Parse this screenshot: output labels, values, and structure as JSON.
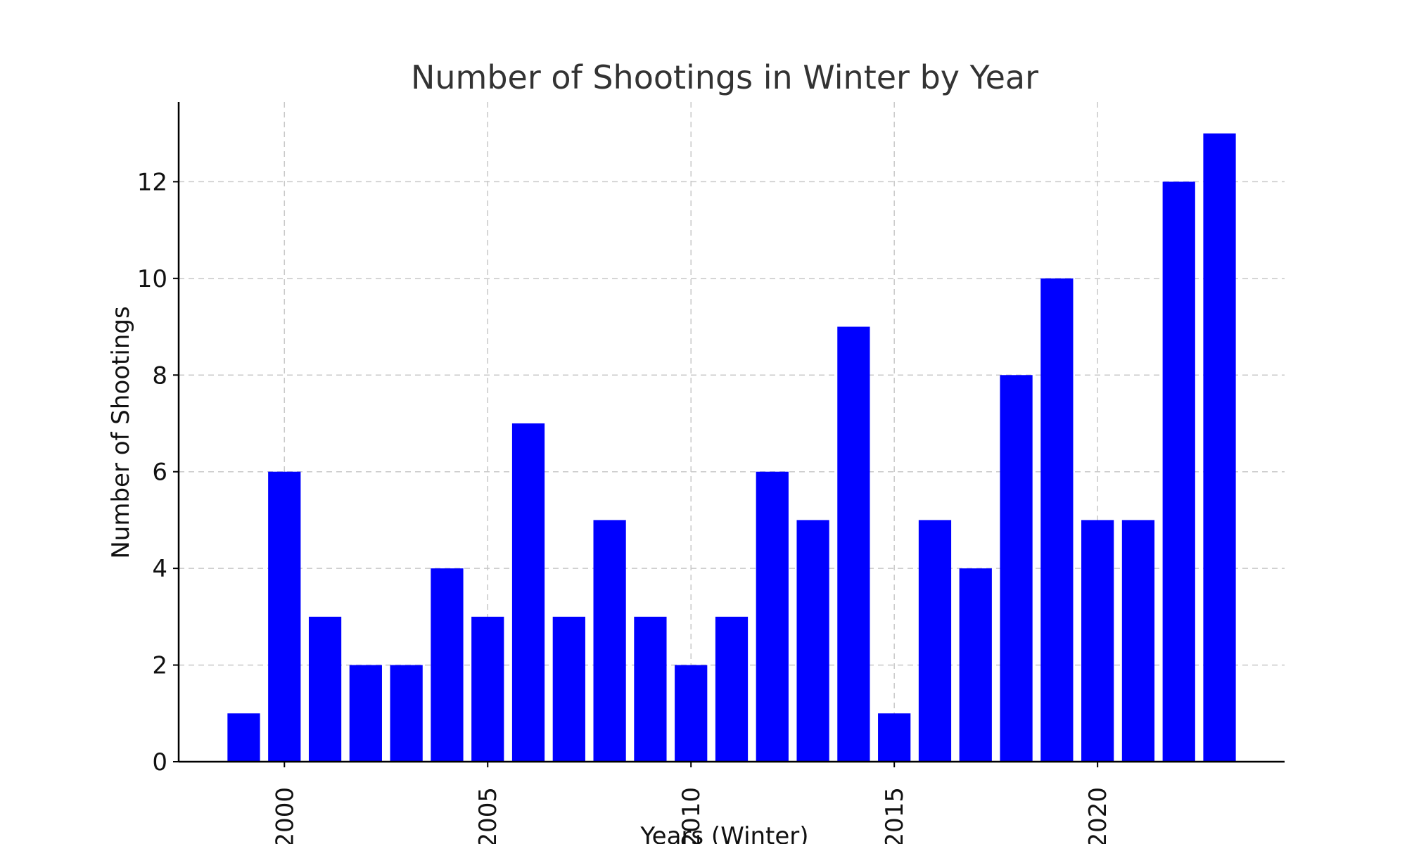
{
  "chart_data": {
    "type": "bar",
    "title": "Number of Shootings in Winter by Year",
    "xlabel": "Years (Winter)",
    "ylabel": "Number of Shootings",
    "categories": [
      1999,
      2000,
      2001,
      2002,
      2003,
      2004,
      2005,
      2006,
      2007,
      2008,
      2009,
      2010,
      2011,
      2012,
      2013,
      2014,
      2015,
      2016,
      2017,
      2018,
      2019,
      2020,
      2021,
      2022,
      2023
    ],
    "values": [
      1,
      6,
      3,
      2,
      2,
      4,
      3,
      7,
      3,
      5,
      3,
      2,
      3,
      6,
      5,
      9,
      1,
      5,
      4,
      8,
      10,
      5,
      5,
      12,
      13
    ],
    "xlim": [
      1997.4,
      2024.6
    ],
    "ylim": [
      0,
      13.65
    ],
    "x_ticks": [
      2000,
      2005,
      2010,
      2015,
      2020
    ],
    "y_ticks": [
      0,
      2,
      4,
      6,
      8,
      10,
      12
    ],
    "grid": true,
    "bar_color": "#0000ff"
  }
}
